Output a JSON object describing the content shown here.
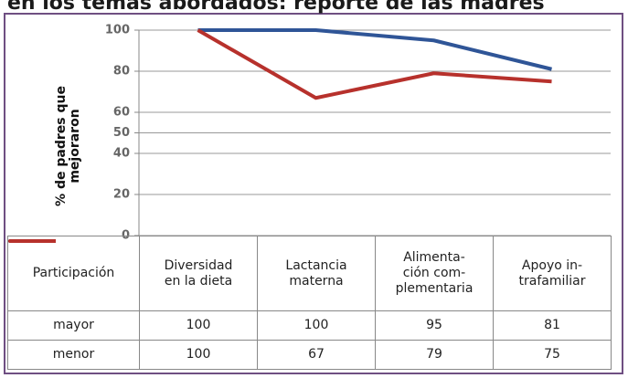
{
  "chart_data": {
    "type": "line",
    "title": "en los temas abordados: reporte de las madres",
    "y_label": "% de padres que\nmejoraron",
    "table_header": "Participación",
    "categories": [
      "Diversidad\nen la dieta",
      "Lactancia\nmaterna",
      "Alimenta-\nción com-\nplementaria",
      "Apoyo in-\ntrafamiliar"
    ],
    "series": [
      {
        "name": "mayor",
        "color": "#2f5597",
        "values": [
          100,
          100,
          95,
          81
        ]
      },
      {
        "name": "menor",
        "color": "#b7312c",
        "values": [
          100,
          67,
          79,
          75
        ]
      }
    ],
    "ylim": [
      0,
      100
    ],
    "yticks": [
      0,
      20,
      40,
      50,
      60,
      80,
      100
    ],
    "grid": true
  }
}
